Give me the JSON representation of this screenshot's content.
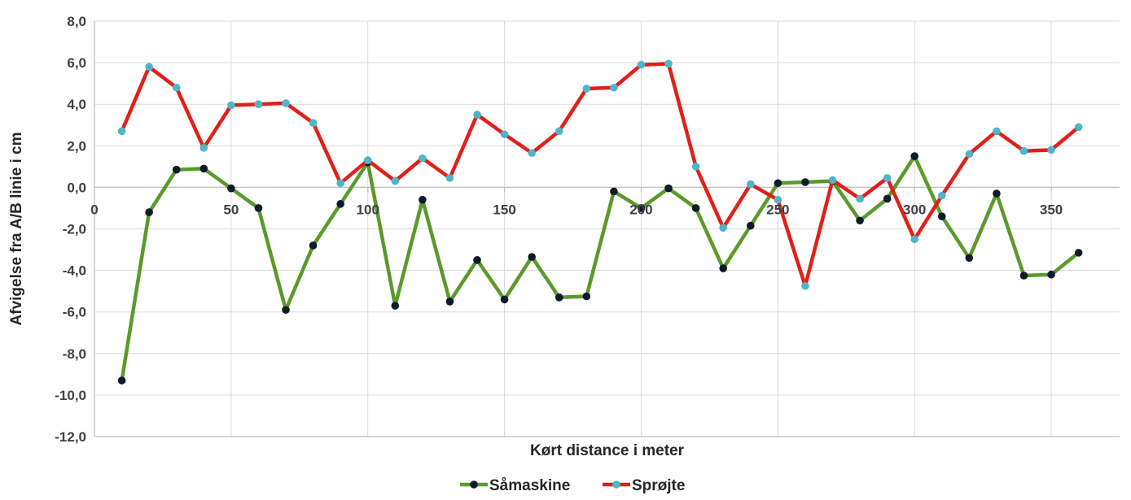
{
  "chart_data": {
    "type": "line",
    "title": "",
    "xlabel": "Kørt distance i meter",
    "ylabel": "Afvigelse fra A/B linie i cm",
    "xlim": [
      0,
      375
    ],
    "ylim": [
      -12,
      8
    ],
    "xticks": [
      0,
      50,
      100,
      150,
      200,
      250,
      300,
      350
    ],
    "xtick_labels": [
      "0",
      "50",
      "100",
      "150",
      "200",
      "250",
      "300",
      "350"
    ],
    "yticks": [
      8,
      6,
      4,
      2,
      0,
      -2,
      -4,
      -6,
      -8,
      -10,
      -12
    ],
    "ytick_labels": [
      "8,0",
      "6,0",
      "4,0",
      "2,0",
      "0,0",
      "-2,0",
      "-4,0",
      "-6,0",
      "-8,0",
      "-10,0",
      "-12,0"
    ],
    "grid": true,
    "legend_position": "bottom-center",
    "x": [
      10,
      20,
      30,
      40,
      50,
      60,
      70,
      80,
      90,
      100,
      110,
      120,
      130,
      140,
      150,
      160,
      170,
      180,
      190,
      200,
      210,
      220,
      230,
      240,
      250,
      260,
      270,
      280,
      290,
      300,
      310,
      320,
      330,
      340,
      350,
      360
    ],
    "series": [
      {
        "name": "Såmaskine",
        "line_color": "#5a9a2a",
        "marker_color": "#0d1a2b",
        "values": [
          -9.3,
          -1.2,
          0.85,
          0.9,
          -0.05,
          -1.0,
          -5.9,
          -2.8,
          -0.8,
          1.2,
          -5.7,
          -0.6,
          -5.5,
          -3.5,
          -5.4,
          -3.35,
          -5.3,
          -5.25,
          -0.2,
          -1.0,
          -0.05,
          -1.0,
          -3.9,
          -1.85,
          0.2,
          0.25,
          0.3,
          -1.6,
          -0.55,
          1.5,
          -1.4,
          -3.4,
          -0.3,
          -4.25,
          -4.2,
          -3.15
        ]
      },
      {
        "name": "Sprøjte",
        "line_color": "#e0201a",
        "marker_color": "#4fb5c8",
        "values": [
          2.7,
          5.8,
          4.8,
          1.9,
          3.95,
          4.0,
          4.05,
          3.1,
          0.2,
          1.3,
          0.3,
          1.4,
          0.45,
          3.5,
          2.55,
          1.65,
          2.7,
          4.75,
          4.8,
          5.9,
          5.95,
          1.0,
          -1.95,
          0.15,
          -0.6,
          -4.75,
          0.35,
          -0.55,
          0.45,
          -2.5,
          -0.4,
          1.6,
          2.7,
          1.75,
          1.8,
          2.9
        ]
      }
    ]
  }
}
